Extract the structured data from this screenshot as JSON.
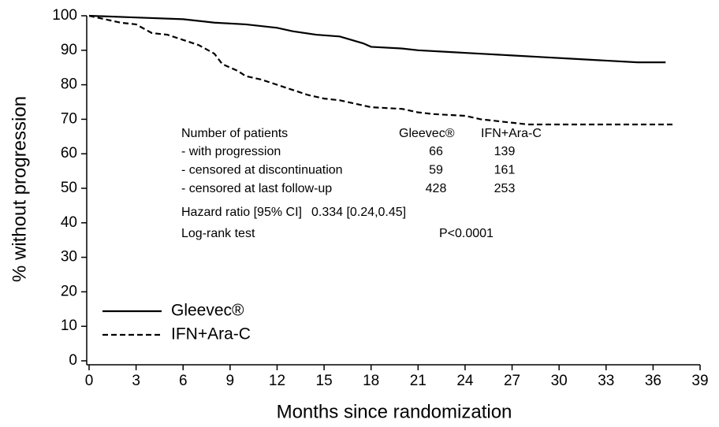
{
  "chart_data": {
    "type": "line",
    "xlabel": "Months since randomization",
    "ylabel": "% without progression",
    "xlim": [
      0,
      39
    ],
    "xticks": [
      0,
      3,
      6,
      9,
      12,
      15,
      18,
      21,
      24,
      27,
      30,
      33,
      36,
      39
    ],
    "ylim": [
      0,
      100
    ],
    "yticks": [
      0,
      10,
      20,
      30,
      40,
      50,
      60,
      70,
      80,
      90,
      100
    ],
    "grid": false,
    "legend": "lower left",
    "series": [
      {
        "name": "Gleevec®",
        "color": "#000000",
        "line_style": "solid",
        "x": [
          0,
          3,
          6,
          8,
          10,
          12,
          13,
          14.5,
          16,
          17.5,
          18,
          20,
          21,
          23,
          25,
          27,
          29,
          31,
          33,
          35,
          36.8
        ],
        "values": [
          100,
          99.5,
          99,
          98,
          97.5,
          96.5,
          95.5,
          94.5,
          94,
          92,
          91,
          90.5,
          90,
          89.5,
          89,
          88.5,
          88,
          87.5,
          87,
          86.5,
          86.5
        ]
      },
      {
        "name": "IFN+Ara-C",
        "color": "#000000",
        "line_style": "dashed",
        "x": [
          0,
          1,
          2,
          3,
          4,
          5,
          6,
          7,
          8,
          8.5,
          9.5,
          10,
          11,
          12,
          13,
          14,
          15,
          16,
          17,
          18,
          20,
          21,
          22,
          24,
          25,
          26,
          27,
          28,
          37.3
        ],
        "values": [
          100,
          99,
          98,
          97.5,
          95,
          94.5,
          93,
          91.5,
          89,
          86,
          84,
          82.5,
          81.5,
          80,
          78.5,
          77,
          76,
          75.5,
          74.5,
          73.5,
          73,
          72,
          71.5,
          71,
          70,
          69.5,
          69,
          68.5,
          68.5
        ]
      }
    ],
    "annotation": {
      "header": [
        "Number of patients",
        "Gleevec®",
        "IFN+Ara-C"
      ],
      "rows": [
        [
          "- with progression",
          66,
          139
        ],
        [
          "- censored at discontinuation",
          59,
          161
        ],
        [
          "- censored at last follow-up",
          428,
          253
        ]
      ],
      "hazard_ratio": {
        "label": "Hazard ratio [95% CI]",
        "value": "0.334 [0.24,0.45]"
      },
      "log_rank": {
        "label": "Log-rank test",
        "value": "P<0.0001"
      }
    }
  }
}
